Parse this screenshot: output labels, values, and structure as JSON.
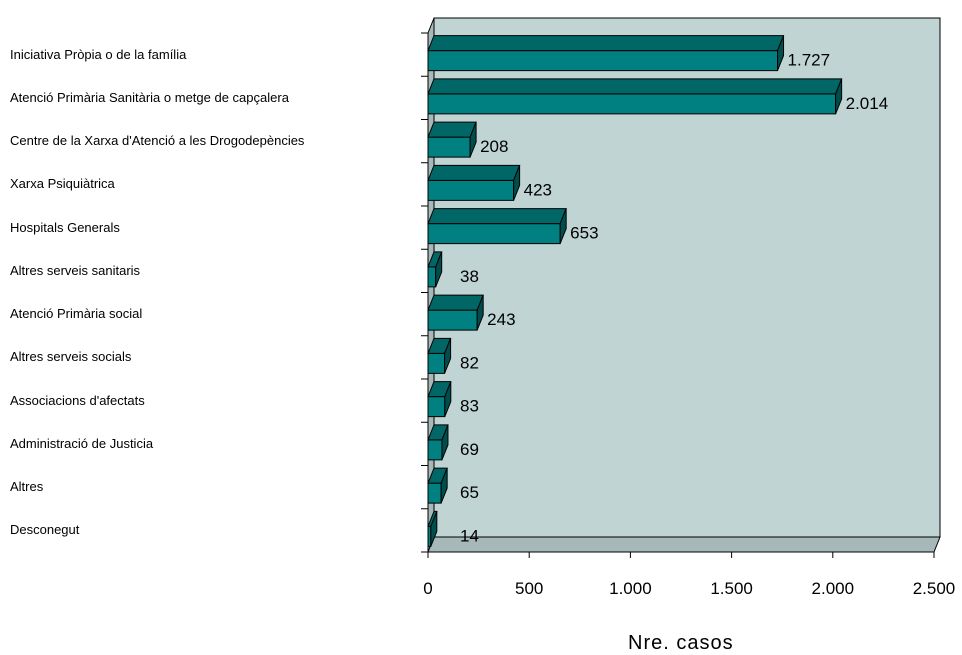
{
  "chart_data": {
    "type": "bar",
    "orientation": "horizontal",
    "style": "3d",
    "categories": [
      "Iniciativa Pròpia o de la família",
      "Atenció Primària Sanitària o metge de capçalera",
      "Centre de la Xarxa d'Atenció a les Drogodepències",
      "Xarxa Psiquiàtrica",
      "Hospitals Generals",
      "Altres serveis sanitaris",
      "Atenció Primària social",
      "Altres serveis socials",
      "Associacions d'afectats",
      "Administració de Justicia",
      "Altres",
      "Desconegut"
    ],
    "values": [
      1727,
      2014,
      208,
      423,
      653,
      38,
      243,
      82,
      83,
      69,
      65,
      14
    ],
    "value_labels": [
      "1.727",
      "2.014",
      "208",
      "423",
      "653",
      "38",
      "243",
      "82",
      "83",
      "69",
      "65",
      "14"
    ],
    "xlim": [
      0,
      2500
    ],
    "xticks": [
      0,
      500,
      1000,
      1500,
      2000,
      2500
    ],
    "xtick_labels": [
      "0",
      "500",
      "1.000",
      "1.500",
      "2.000",
      "2.500"
    ],
    "xlabel": "Nre. casos",
    "ylabel": "",
    "title": "",
    "legend": "none",
    "colors": {
      "bar_front": "#008080",
      "bar_top": "#006666",
      "bar_side": "#004d4d",
      "plot_back": "#c0d4d4",
      "plot_floor": "#a6b8b8"
    }
  }
}
